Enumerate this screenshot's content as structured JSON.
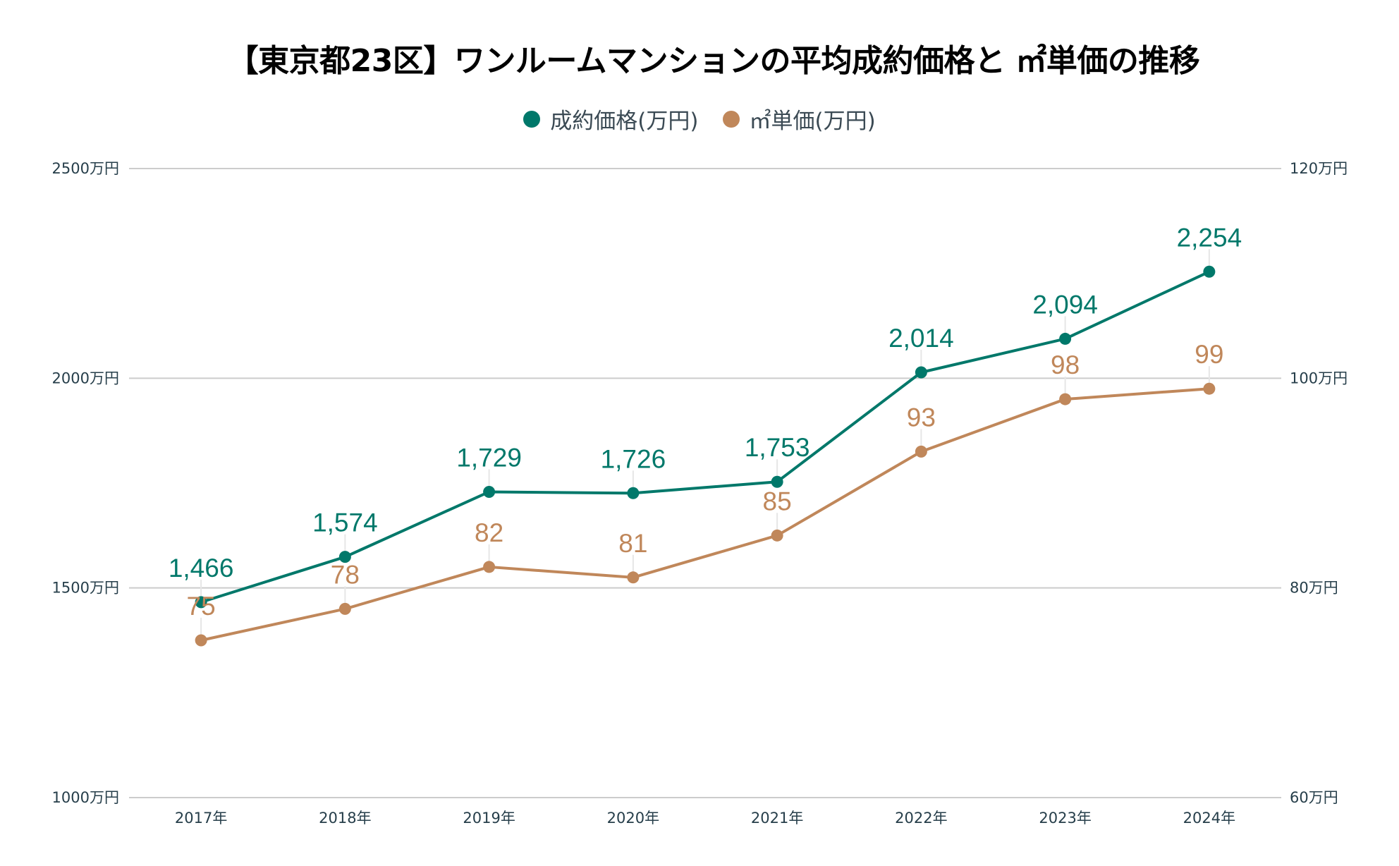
{
  "chart_data": {
    "type": "line",
    "title": "【東京都23区】ワンルームマンションの平均成約価格と ㎡単価の推移",
    "categories": [
      "2017年",
      "2018年",
      "2019年",
      "2020年",
      "2021年",
      "2022年",
      "2023年",
      "2024年"
    ],
    "series": [
      {
        "name": "成約価格(万円)",
        "axis": "left",
        "color": "#00786a",
        "values": [
          1466,
          1574,
          1729,
          1726,
          1753,
          2014,
          2094,
          2254
        ],
        "labels": [
          "1,466",
          "1,574",
          "1,729",
          "1,726",
          "1,753",
          "2,014",
          "2,094",
          "2,254"
        ]
      },
      {
        "name": "㎡単価(万円)",
        "axis": "right",
        "color": "#c0875a",
        "values": [
          75,
          78,
          82,
          81,
          85,
          93,
          98,
          99
        ],
        "labels": [
          "75",
          "78",
          "82",
          "81",
          "85",
          "93",
          "98",
          "99"
        ]
      }
    ],
    "y_left": {
      "ylim": [
        1000,
        2500
      ],
      "ticks": [
        1000,
        1500,
        2000,
        2500
      ],
      "tick_labels": [
        "1000万円",
        "1500万円",
        "2000万円",
        "2500万円"
      ]
    },
    "y_right": {
      "ylim": [
        60,
        120
      ],
      "ticks": [
        60,
        80,
        100,
        120
      ],
      "tick_labels": [
        "60万円",
        "80万円",
        "100万円",
        "120万円"
      ]
    },
    "xlabel": "",
    "ylabel": "",
    "grid": true,
    "legend_position": "top-center",
    "data_labels": true
  }
}
